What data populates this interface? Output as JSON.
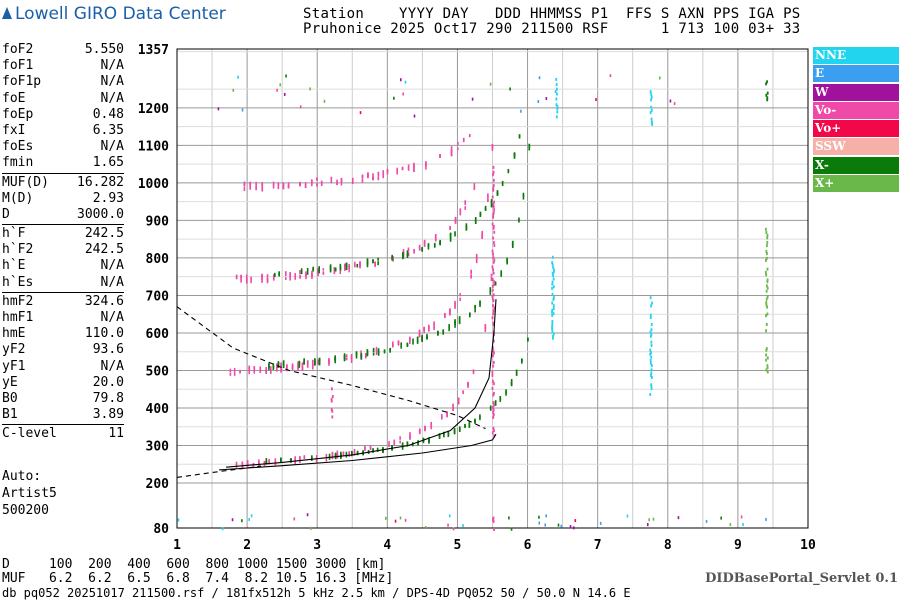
{
  "logo": "Lowell GIRO Data Center",
  "header": {
    "line1": "Station    YYYY DAY   DDD HHMMSS P1  FFS S AXN PPS IGA PS",
    "line2": "Pruhonice 2025 Oct17 290 211500 RSF      1 713 100 03+ 33"
  },
  "params": [
    [
      {
        "k": "foF2",
        "v": "5.550"
      },
      {
        "k": "foF1",
        "v": "N/A"
      },
      {
        "k": "foF1p",
        "v": "N/A"
      },
      {
        "k": "foE",
        "v": "N/A"
      },
      {
        "k": "foEp",
        "v": "0.48"
      },
      {
        "k": "fxI",
        "v": "6.35"
      },
      {
        "k": "foEs",
        "v": "N/A"
      },
      {
        "k": "fmin",
        "v": "1.65"
      }
    ],
    [
      {
        "k": "MUF(D)",
        "v": "16.282"
      },
      {
        "k": "M(D)",
        "v": "2.93"
      },
      {
        "k": "D",
        "v": "3000.0"
      }
    ],
    [
      {
        "k": "h`F",
        "v": "242.5"
      },
      {
        "k": "h`F2",
        "v": "242.5"
      },
      {
        "k": "h`E",
        "v": "N/A"
      },
      {
        "k": "h`Es",
        "v": "N/A"
      }
    ],
    [
      {
        "k": "hmF2",
        "v": "324.6"
      },
      {
        "k": "hmF1",
        "v": "N/A"
      },
      {
        "k": "hmE",
        "v": "110.0"
      },
      {
        "k": "yF2",
        "v": "93.6"
      },
      {
        "k": "yF1",
        "v": "N/A"
      },
      {
        "k": "yE",
        "v": "20.0"
      },
      {
        "k": "B0",
        "v": "79.8"
      },
      {
        "k": "B1",
        "v": "3.89"
      }
    ]
  ],
  "clevel": {
    "k": "C-level",
    "v": "11"
  },
  "auto": {
    "line1": "Auto:",
    "line2": "Artist5",
    "line3": "500200"
  },
  "legend": [
    {
      "label": "NNE",
      "color": "#22d4ee"
    },
    {
      "label": "E",
      "color": "#3a9ff0"
    },
    {
      "label": "W",
      "color": "#a0119c"
    },
    {
      "label": "Vo-",
      "color": "#f04aa8"
    },
    {
      "label": "Vo+",
      "color": "#f20848"
    },
    {
      "label": "SSW",
      "color": "#f5b0a8"
    },
    {
      "label": "X-",
      "color": "#0a7a0a"
    },
    {
      "label": "X+",
      "color": "#6ab84a"
    }
  ],
  "bottom": {
    "line1": "D     100  200  400  600  800 1000 1500 3000 [km]",
    "line2": "MUF   6.2  6.2  6.5  6.8  7.4  8.2 10.5 16.3 [MHz]",
    "line3": "db pq052 20251017 211500.rsf / 181fx512h 5 kHz 2.5 km / DPS-4D PQ052 50 / 50.0 N 14.6 E",
    "servlet": "DIDBasePortal_Servlet 0.1"
  },
  "chart_data": {
    "type": "scatter",
    "xlim": [
      1,
      10
    ],
    "ylim": [
      80,
      1357
    ],
    "xticks": [
      "1",
      "2",
      "3",
      "4",
      "5",
      "6",
      "7",
      "8",
      "9",
      "10"
    ],
    "yticks": [
      "80",
      "200",
      "300",
      "400",
      "500",
      "600",
      "700",
      "800",
      "900",
      "1000",
      "1100",
      "1200",
      "1357"
    ],
    "grid": true,
    "traces": [
      {
        "mode": "Vo-",
        "f0": 1.75,
        "f1": 5.5,
        "h0": 242,
        "hk": 0.25,
        "fc": 5.62,
        "n": 10,
        "spread": 14
      },
      {
        "mode": "X-",
        "f0": 2.2,
        "f1": 6.05,
        "h0": 250,
        "hk": 0.25,
        "fc": 6.3,
        "n": 10,
        "spread": 10
      },
      {
        "mode": "Vo-",
        "f0": 1.75,
        "f1": 5.5,
        "h0": 490,
        "hk": 0.28,
        "fc": 5.62,
        "n": 8,
        "spread": 18
      },
      {
        "mode": "X-",
        "f0": 2.3,
        "f1": 6.05,
        "h0": 500,
        "hk": 0.32,
        "fc": 6.2,
        "n": 8,
        "spread": 14
      },
      {
        "mode": "Vo-",
        "f0": 1.75,
        "f1": 5.4,
        "h0": 735,
        "hk": 0.25,
        "fc": 5.62,
        "n": 7,
        "spread": 18
      },
      {
        "mode": "X-",
        "f0": 2.3,
        "f1": 5.95,
        "h0": 745,
        "hk": 0.3,
        "fc": 6.2,
        "n": 7,
        "spread": 14
      },
      {
        "mode": "Vo-",
        "f0": 1.95,
        "f1": 5.2,
        "h0": 985,
        "hk": 0.16,
        "fc": 5.62,
        "n": 6,
        "spread": 18
      }
    ],
    "vertical_streaks": [
      {
        "mode": "Vo-",
        "x": 5.5,
        "y0": 330,
        "y1": 1050
      },
      {
        "mode": "X+",
        "x": 9.4,
        "y0": 500,
        "y1": 890
      },
      {
        "mode": "X-",
        "x": 9.4,
        "y0": 1220,
        "y1": 1275
      },
      {
        "mode": "NNE",
        "x": 6.35,
        "y0": 590,
        "y1": 810
      },
      {
        "mode": "NNE",
        "x": 7.75,
        "y0": 440,
        "y1": 700
      },
      {
        "mode": "NNE",
        "x": 7.75,
        "y0": 1160,
        "y1": 1250
      },
      {
        "mode": "NNE",
        "x": 6.4,
        "y0": 1180,
        "y1": 1280
      },
      {
        "mode": "Vo-",
        "x": 3.2,
        "y0": 380,
        "y1": 460
      },
      {
        "mode": "Vo-",
        "x": 5.5,
        "y0": 80,
        "y1": 115
      }
    ],
    "profile_curves": [
      {
        "name": "O-trace fit",
        "points": [
          [
            1.7,
            242
          ],
          [
            2.5,
            255
          ],
          [
            3.5,
            275
          ],
          [
            4.3,
            300
          ],
          [
            4.9,
            340
          ],
          [
            5.25,
            400
          ],
          [
            5.45,
            480
          ],
          [
            5.52,
            600
          ],
          [
            5.55,
            690
          ]
        ]
      },
      {
        "name": "Profile",
        "points": [
          [
            1.6,
            235
          ],
          [
            2.5,
            246
          ],
          [
            3.5,
            260
          ],
          [
            4.5,
            280
          ],
          [
            5.2,
            300
          ],
          [
            5.5,
            315
          ],
          [
            5.55,
            330
          ]
        ]
      },
      {
        "name": "Dashed",
        "dashed": true,
        "points": [
          [
            1,
            215
          ],
          [
            1.5,
            228
          ],
          [
            2.2,
            245
          ]
        ]
      },
      {
        "name": "Dashed MUF",
        "dashed": true,
        "points": [
          [
            1,
            670
          ],
          [
            1.8,
            560
          ],
          [
            2.6,
            500
          ],
          [
            3.5,
            460
          ],
          [
            4.3,
            420
          ],
          [
            5,
            380
          ],
          [
            5.4,
            345
          ]
        ]
      }
    ]
  }
}
